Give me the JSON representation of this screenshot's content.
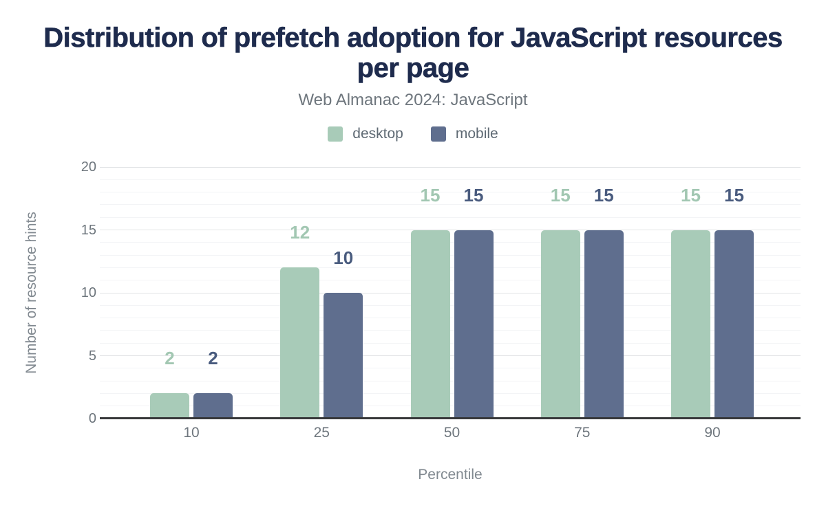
{
  "chart": {
    "title": "Distribution of prefetch adoption for JavaScript resources per page",
    "subtitle": "Web Almanac 2024: JavaScript"
  },
  "chart_data": {
    "type": "bar",
    "title": "Distribution of prefetch adoption for JavaScript resources per page",
    "subtitle": "Web Almanac 2024: JavaScript",
    "categories": [
      "10",
      "25",
      "50",
      "75",
      "90"
    ],
    "series": [
      {
        "name": "desktop",
        "color": "#a8cbb8",
        "label_color": "#a2c7b2",
        "values": [
          2,
          12,
          15,
          15,
          15
        ]
      },
      {
        "name": "mobile",
        "color": "#5f6e8e",
        "label_color": "#495b7e",
        "values": [
          2,
          10,
          15,
          15,
          15
        ]
      }
    ],
    "xlabel": "Percentile",
    "ylabel": "Number of resource hints",
    "ylim": [
      0,
      20
    ],
    "yticks": [
      0,
      5,
      10,
      15,
      20
    ],
    "grid": "horizontal; faint minor line every 1 unit, slightly darker major line every 5 units; no vertical gridlines",
    "legend_position": "top-center",
    "data_labels": true
  },
  "colors": {
    "background": "#ffffff",
    "title": "#1e2b4d",
    "subtitle": "#6e767d",
    "legend_text": "#5f6a74",
    "axis_text": "#6e767d",
    "axis_title_text": "#818990",
    "axis_line": "#37383a",
    "grid_major": "#e2e4e6",
    "grid_minor": "#f3f4f6"
  }
}
